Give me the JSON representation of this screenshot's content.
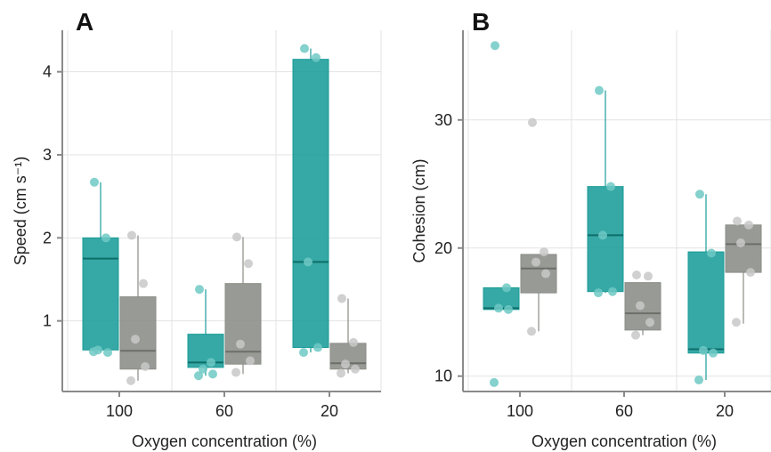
{
  "colors": {
    "group_a": "#1a9c98",
    "group_b": "#8a8d86",
    "point_a": "#6ec9c4",
    "point_b": "#c8c8c8"
  },
  "chart_data": [
    {
      "panel": "A",
      "type": "box",
      "xlabel": "Oxygen concentration (%)",
      "ylabel": "Speed (cm s⁻¹)",
      "categories": [
        "100",
        "60",
        "20"
      ],
      "ylim": [
        0.15,
        4.5
      ],
      "yticks": [
        1,
        2,
        3,
        4
      ],
      "grid": true,
      "series": [
        {
          "color_key": "group_a",
          "boxes": [
            {
              "q1": 0.65,
              "median": 1.75,
              "q3": 2.0,
              "whisker_low": 0.62,
              "whisker_high": 2.67,
              "points": [
                2.67,
                2.0,
                0.65,
                0.62,
                0.63
              ]
            },
            {
              "q1": 0.44,
              "median": 0.5,
              "q3": 0.84,
              "whisker_low": 0.34,
              "whisker_high": 1.38,
              "points": [
                1.38,
                0.5,
                0.42,
                0.36,
                0.34
              ]
            },
            {
              "q1": 0.68,
              "median": 1.71,
              "q3": 4.15,
              "whisker_low": 0.62,
              "whisker_high": 4.28,
              "points": [
                4.28,
                4.17,
                1.71,
                0.68,
                0.62
              ]
            }
          ]
        },
        {
          "color_key": "group_b",
          "boxes": [
            {
              "q1": 0.42,
              "median": 0.64,
              "q3": 1.29,
              "whisker_low": 0.28,
              "whisker_high": 2.03,
              "points": [
                2.03,
                1.45,
                0.78,
                0.45,
                0.28
              ]
            },
            {
              "q1": 0.48,
              "median": 0.63,
              "q3": 1.45,
              "whisker_low": 0.36,
              "whisker_high": 2.01,
              "points": [
                2.01,
                1.69,
                0.72,
                0.52,
                0.38
              ]
            },
            {
              "q1": 0.42,
              "median": 0.49,
              "q3": 0.73,
              "whisker_low": 0.37,
              "whisker_high": 1.27,
              "points": [
                1.27,
                0.74,
                0.48,
                0.42,
                0.37
              ]
            }
          ]
        }
      ]
    },
    {
      "panel": "B",
      "type": "box",
      "xlabel": "Oxygen concentration (%)",
      "ylabel": "Cohesion (cm)",
      "categories": [
        "100",
        "60",
        "20"
      ],
      "ylim": [
        8.8,
        37
      ],
      "yticks": [
        10,
        20,
        30
      ],
      "grid": true,
      "series": [
        {
          "color_key": "group_a",
          "boxes": [
            {
              "q1": 15.2,
              "median": 15.3,
              "q3": 16.9,
              "whisker_low": 15.2,
              "whisker_high": 16.9,
              "points": [
                35.8,
                16.9,
                15.3,
                15.2,
                9.5
              ]
            },
            {
              "q1": 16.6,
              "median": 21.0,
              "q3": 24.8,
              "whisker_low": 16.5,
              "whisker_high": 32.3,
              "points": [
                32.3,
                24.8,
                21.0,
                16.6,
                16.5
              ]
            },
            {
              "q1": 11.8,
              "median": 12.1,
              "q3": 19.7,
              "whisker_low": 9.7,
              "whisker_high": 24.2,
              "points": [
                24.2,
                19.6,
                12.0,
                11.8,
                9.7
              ]
            }
          ]
        },
        {
          "color_key": "group_b",
          "boxes": [
            {
              "q1": 16.5,
              "median": 18.4,
              "q3": 19.5,
              "whisker_low": 13.5,
              "whisker_high": 19.5,
              "points": [
                29.8,
                19.7,
                18.9,
                18.0,
                13.5
              ]
            },
            {
              "q1": 13.6,
              "median": 14.9,
              "q3": 17.3,
              "whisker_low": 13.2,
              "whisker_high": 17.3,
              "points": [
                17.9,
                17.8,
                15.5,
                14.2,
                13.2
              ]
            },
            {
              "q1": 18.1,
              "median": 20.3,
              "q3": 21.8,
              "whisker_low": 14.1,
              "whisker_high": 21.8,
              "points": [
                22.1,
                21.8,
                20.4,
                18.1,
                14.2
              ]
            }
          ]
        }
      ]
    }
  ]
}
